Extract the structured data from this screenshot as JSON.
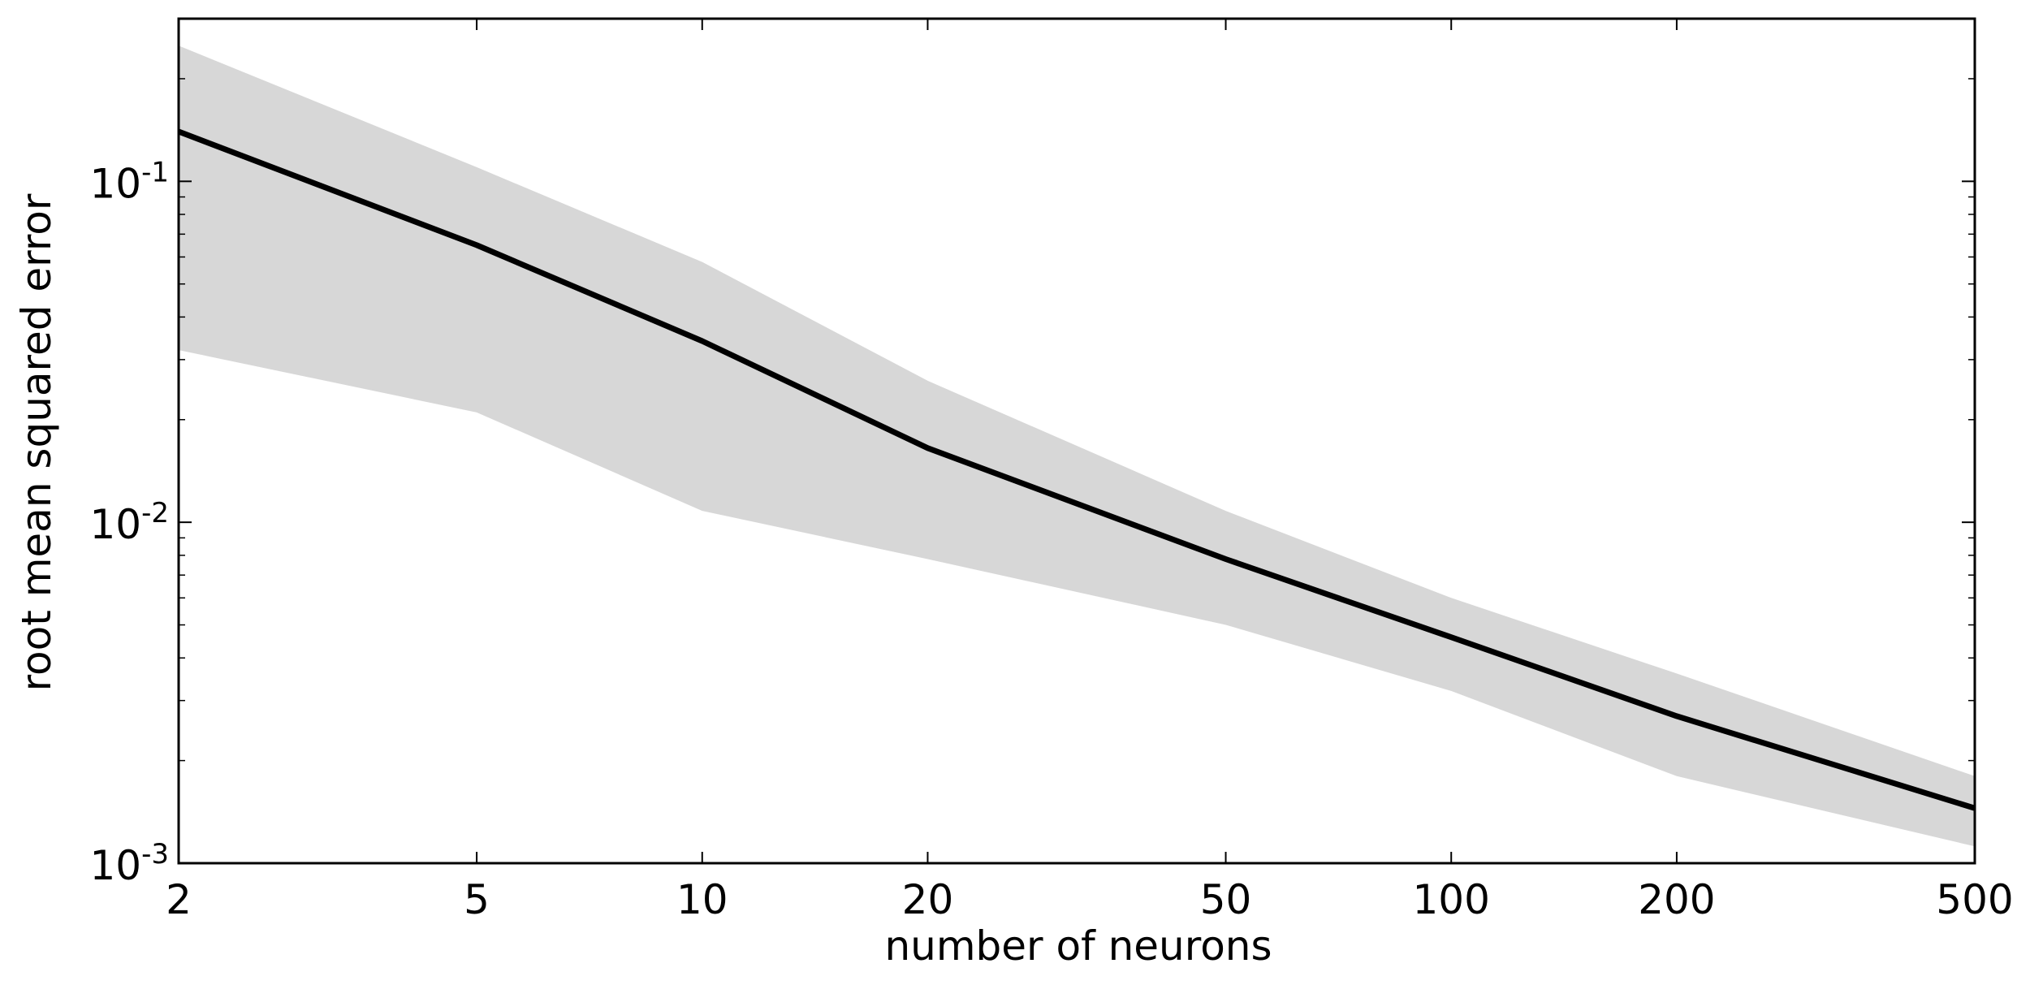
{
  "chart_data": {
    "type": "area",
    "title": "",
    "xlabel": "number of neurons",
    "ylabel": "root mean squared error",
    "xscale": "log",
    "yscale": "log",
    "xlim": [
      2,
      500
    ],
    "ylim": [
      0.001,
      0.3
    ],
    "grid": false,
    "x_ticks": [
      {
        "value": 2,
        "label": "2"
      },
      {
        "value": 5,
        "label": "5"
      },
      {
        "value": 10,
        "label": "10"
      },
      {
        "value": 20,
        "label": "20"
      },
      {
        "value": 50,
        "label": "50"
      },
      {
        "value": 100,
        "label": "100"
      },
      {
        "value": 200,
        "label": "200"
      },
      {
        "value": 500,
        "label": "500"
      }
    ],
    "y_ticks": [
      {
        "value": 0.1,
        "base": "10",
        "exponent": "-1"
      },
      {
        "value": 0.01,
        "base": "10",
        "exponent": "-2"
      },
      {
        "value": 0.001,
        "base": "10",
        "exponent": "-3"
      }
    ],
    "x": [
      2,
      5,
      10,
      20,
      50,
      100,
      200,
      500
    ],
    "series": [
      {
        "values": [
          0.14,
          0.065,
          0.034,
          0.0165,
          0.0078,
          0.0046,
          0.0027,
          0.00145
        ],
        "color": "#000000"
      }
    ],
    "band": {
      "upper": [
        0.25,
        0.11,
        0.058,
        0.026,
        0.0108,
        0.006,
        0.0036,
        0.0018
      ],
      "lower": [
        0.032,
        0.021,
        0.0108,
        0.0078,
        0.005,
        0.0032,
        0.0018,
        0.00112
      ],
      "color": "#d7d7d7"
    }
  }
}
